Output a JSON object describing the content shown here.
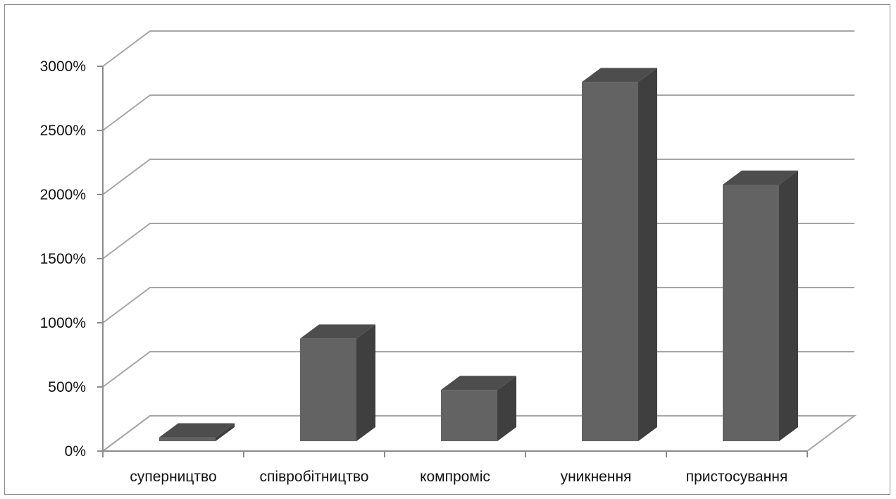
{
  "chart_data": {
    "type": "bar",
    "style": "3d-column",
    "categories": [
      "суперництво",
      "співробітництво",
      "компроміс",
      "уникнення",
      "пристосування"
    ],
    "values": [
      30,
      800,
      400,
      2800,
      2000
    ],
    "title": "",
    "xlabel": "",
    "ylabel": "",
    "ylim": [
      0,
      3000
    ],
    "y_ticks": [
      0,
      500,
      1000,
      1500,
      2000,
      2500,
      3000
    ],
    "y_tick_labels": [
      "0%",
      "500%",
      "1000%",
      "1500%",
      "2000%",
      "2500%",
      "3000%"
    ],
    "grid": true,
    "legend": "none"
  },
  "colors": {
    "bar_front": "#636363",
    "bar_side": "#3f3f3f",
    "bar_top": "#4d4d4d",
    "gridline": "#a6a6a6",
    "axis": "#8c8c8c",
    "text": "#111111"
  }
}
